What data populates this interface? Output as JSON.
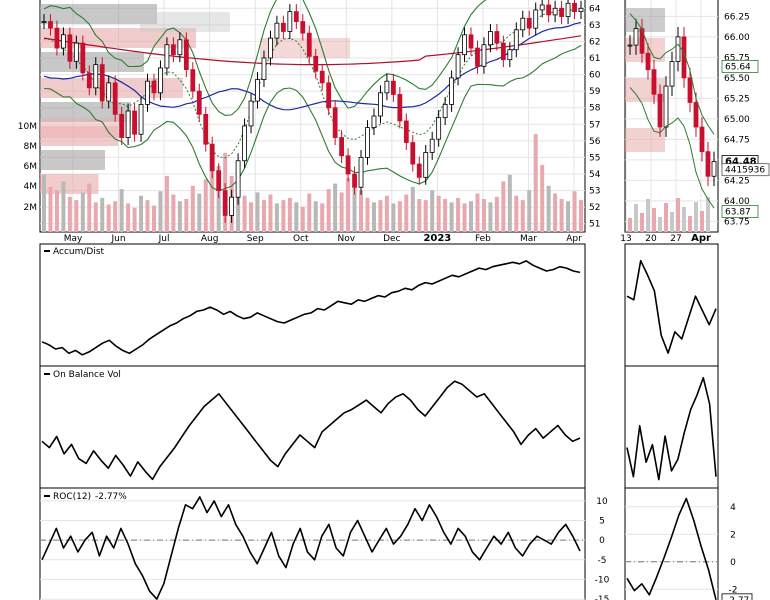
{
  "chart_data": [
    {
      "type": "candlestick",
      "name_on_chart": "",
      "x_ticks": [
        "May",
        "Jun",
        "Jul",
        "Aug",
        "Sep",
        "Oct",
        "Nov",
        "Dec",
        "2023",
        "Feb",
        "Mar",
        "Apr"
      ],
      "price_ticks": [
        "64",
        "63",
        "62",
        "61",
        "60",
        "59",
        "58",
        "57",
        "56",
        "55",
        "54",
        "53",
        "52",
        "51"
      ],
      "volume_ticks": [
        "10M",
        "8M",
        "6M",
        "4M",
        "2M"
      ],
      "ylim": [
        50.5,
        64.5
      ],
      "closes": [
        63.2,
        62.8,
        61.6,
        62.4,
        60.8,
        61.9,
        60.1,
        59.2,
        60.6,
        58.4,
        59.5,
        57.6,
        56.2,
        57.8,
        56.4,
        58.2,
        59.6,
        58.9,
        60.4,
        61.8,
        61.2,
        62.1,
        60.3,
        59.0,
        57.6,
        55.8,
        54.2,
        53.0,
        51.5,
        52.6,
        54.8,
        56.9,
        58.4,
        59.7,
        61.0,
        62.2,
        63.1,
        62.6,
        63.8,
        63.2,
        62.5,
        61.1,
        60.2,
        59.5,
        58.0,
        56.2,
        55.1,
        54.0,
        53.2,
        55.0,
        56.8,
        57.5,
        58.9,
        59.6,
        58.8,
        57.2,
        55.9,
        54.6,
        53.8,
        55.3,
        56.1,
        57.4,
        58.2,
        59.8,
        61.2,
        62.4,
        61.6,
        60.5,
        61.8,
        62.6,
        61.9,
        60.9,
        61.5,
        62.7,
        63.4,
        62.8,
        63.9,
        64.2,
        63.6,
        64.0,
        63.5,
        64.3,
        63.8,
        64.0
      ],
      "volume_levels": [
        5.2,
        4.1,
        3.8,
        4.6,
        3.2,
        2.9,
        3.6,
        4.4,
        2.7,
        3.1,
        2.5,
        2.8,
        3.9,
        2.6,
        2.2,
        3.3,
        2.9,
        2.4,
        3.7,
        5.1,
        3.4,
        2.8,
        3.0,
        4.2,
        3.5,
        4.8,
        5.6,
        6.0,
        7.2,
        5.1,
        4.0,
        3.3,
        2.7,
        3.6,
        2.9,
        3.4,
        2.6,
        2.9,
        3.1,
        2.7,
        2.3,
        3.5,
        2.8,
        2.6,
        3.9,
        4.4,
        3.6,
        4.9,
        5.3,
        3.8,
        3.1,
        2.7,
        2.9,
        3.3,
        2.6,
        2.8,
        3.4,
        4.1,
        3.0,
        2.9,
        3.8,
        3.3,
        3.0,
        2.7,
        3.1,
        2.6,
        2.8,
        3.5,
        3.0,
        2.7,
        3.2,
        4.6,
        5.2,
        3.3,
        2.9,
        3.8,
        8.9,
        6.1,
        4.2,
        3.5,
        3.0,
        2.8,
        3.7,
        2.9
      ],
      "detail_panel": {
        "x_ticks": [
          "13",
          "20",
          "27",
          "Apr"
        ],
        "price_ticks": [
          "66.25",
          "66.00",
          "65.75",
          "65.50",
          "65.25",
          "65.00",
          "64.75",
          "64.50",
          "64.25",
          "64.00",
          "63.75"
        ],
        "value_labels": [
          "65.64",
          "64.48",
          "4415936",
          "63.87"
        ],
        "closes": [
          65.9,
          66.1,
          65.8,
          65.6,
          65.3,
          64.9,
          65.4,
          65.7,
          66.0,
          65.5,
          65.2,
          64.9,
          64.6,
          64.3,
          64.48
        ]
      }
    },
    {
      "type": "line",
      "name": "Accum/Dist",
      "values": [
        44,
        42,
        39,
        40,
        36,
        38,
        35,
        37,
        40,
        43,
        45,
        41,
        38,
        36,
        39,
        42,
        46,
        49,
        52,
        55,
        57,
        60,
        62,
        65,
        66,
        68,
        66,
        63,
        65,
        62,
        60,
        61,
        64,
        62,
        60,
        58,
        57,
        59,
        61,
        63,
        64,
        67,
        66,
        69,
        72,
        71,
        70,
        73,
        72,
        74,
        76,
        75,
        78,
        79,
        81,
        80,
        83,
        85,
        84,
        86,
        88,
        90,
        89,
        91,
        93,
        95,
        94,
        96,
        97,
        98,
        99,
        98,
        100,
        97,
        95,
        93,
        94,
        96,
        95,
        93,
        92
      ],
      "detail_values": [
        52,
        50,
        72,
        64,
        55,
        30,
        20,
        32,
        28,
        40,
        52,
        44,
        36,
        45
      ]
    },
    {
      "type": "line",
      "name": "On Balance Vol",
      "values": [
        52,
        48,
        55,
        44,
        50,
        41,
        38,
        46,
        40,
        35,
        43,
        37,
        30,
        39,
        33,
        28,
        36,
        42,
        48,
        55,
        62,
        68,
        74,
        78,
        82,
        76,
        70,
        64,
        58,
        52,
        46,
        40,
        36,
        44,
        50,
        56,
        52,
        48,
        58,
        62,
        66,
        70,
        72,
        75,
        78,
        74,
        70,
        76,
        80,
        82,
        78,
        72,
        68,
        74,
        80,
        86,
        90,
        88,
        84,
        80,
        82,
        76,
        70,
        64,
        58,
        50,
        56,
        60,
        54,
        58,
        62,
        56,
        52,
        54
      ],
      "detail_values": [
        40,
        20,
        55,
        30,
        42,
        18,
        48,
        24,
        32,
        50,
        66,
        76,
        88,
        70,
        20
      ]
    },
    {
      "type": "line",
      "name": "ROC(12)",
      "title_value": "-2.77%",
      "y_ticks": [
        "10",
        "5",
        "0",
        "-5",
        "-10",
        "-15"
      ],
      "ylim": [
        -16,
        12
      ],
      "values": [
        -5,
        -1,
        3,
        -2,
        1,
        -3,
        0,
        2,
        -4,
        1,
        -2,
        3,
        -1,
        -6,
        -9,
        -13,
        -15,
        -11,
        -4,
        3,
        9,
        8,
        11,
        7,
        10,
        6,
        9,
        4,
        1,
        -3,
        -6,
        -2,
        2,
        -4,
        -7,
        -1,
        3,
        -3,
        -5,
        1,
        4,
        -2,
        -4,
        2,
        5,
        1,
        -3,
        0,
        3,
        -1,
        1,
        4,
        8,
        5,
        9,
        6,
        2,
        -1,
        3,
        1,
        -3,
        -5,
        -2,
        1,
        -1,
        2,
        -2,
        -4,
        -1,
        1,
        0,
        -1,
        2,
        4,
        1,
        -2.77
      ],
      "detail_y_ticks": [
        "4",
        "2",
        "0",
        "-2"
      ],
      "detail_ylim": [
        -3,
        5
      ],
      "detail_values": [
        -1.2,
        -2.1,
        -1.6,
        -2.4,
        -1.1,
        0.3,
        1.8,
        3.4,
        4.6,
        3.0,
        1.1,
        -0.6,
        -2.77
      ],
      "detail_value_label": "-2.77"
    }
  ]
}
